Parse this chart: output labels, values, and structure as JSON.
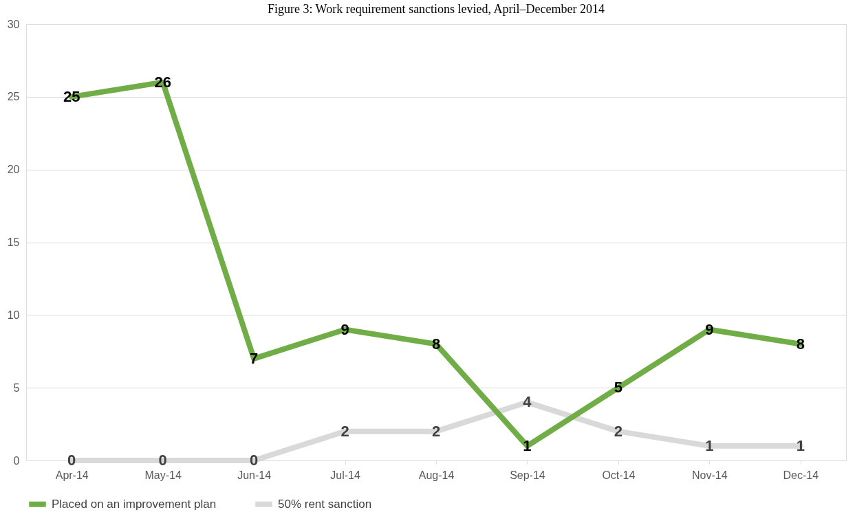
{
  "chart_data": {
    "type": "line",
    "title": "Figure 3: Work requirement sanctions levied, April–December 2014",
    "categories": [
      "Apr-14",
      "May-14",
      "Jun-14",
      "Jul-14",
      "Aug-14",
      "Sep-14",
      "Oct-14",
      "Nov-14",
      "Dec-14"
    ],
    "series": [
      {
        "name": "Placed on an improvement plan",
        "color": "#70ad47",
        "values": [
          25,
          26,
          7,
          9,
          8,
          1,
          5,
          9,
          8
        ]
      },
      {
        "name": "50% rent sanction",
        "color": "#d9d9d9",
        "values": [
          0,
          0,
          0,
          2,
          2,
          4,
          2,
          1,
          1
        ]
      }
    ],
    "ylim": [
      0,
      30
    ],
    "yticks": [
      0,
      5,
      10,
      15,
      20,
      25,
      30
    ],
    "grid": "y",
    "legend": "bottom",
    "data_labels": true,
    "line_style": "solid"
  }
}
